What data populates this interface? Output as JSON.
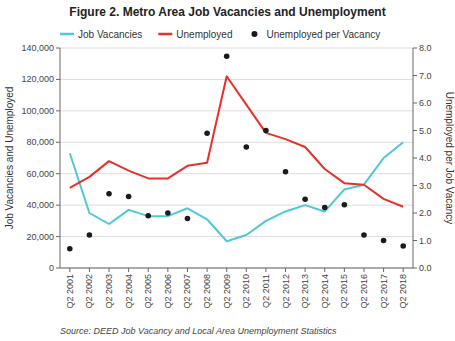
{
  "chart_data": {
    "type": "line",
    "title": "Figure 2. Metro Area Job Vacancies and Unemployment",
    "source": "Source: DEED Job Vacancy and Local Area Unemployment Statistics",
    "y_label": "Job Vacancies and Unemployed",
    "y2_label": "Unemployed per Job Vacancy",
    "categories": [
      "Q2 2001",
      "Q2 2002",
      "Q2 2003",
      "Q2 2004",
      "Q2 2005",
      "Q2 2006",
      "Q2 2007",
      "Q2 2008",
      "Q2 2009",
      "Q2 2010",
      "Q2 2011",
      "Q2 2012",
      "Q2 2013",
      "Q2 2014",
      "Q2 2015",
      "Q2 2016",
      "Q2 2017",
      "Q2 2018"
    ],
    "series": [
      {
        "name": "Job Vacancies",
        "color": "#4DC8D4",
        "values": [
          73000,
          35000,
          28000,
          37000,
          33000,
          33000,
          38000,
          31000,
          17000,
          21000,
          30000,
          36000,
          40000,
          36000,
          50000,
          53000,
          70000,
          80000
        ]
      },
      {
        "name": "Unemployed",
        "color": "#E8302A",
        "values": [
          51000,
          58000,
          68000,
          62000,
          57000,
          57000,
          65000,
          67000,
          122000,
          104000,
          86000,
          82000,
          77000,
          63000,
          54000,
          53000,
          44000,
          39000
        ]
      },
      {
        "name": "Unemployed per Vacancy",
        "color": "#1a1a1a",
        "type": "scatter",
        "marker": "circle",
        "axis": "y2",
        "values": [
          0.7,
          1.2,
          2.7,
          2.6,
          1.9,
          2.0,
          1.8,
          4.9,
          7.7,
          4.4,
          5.0,
          3.5,
          2.5,
          2.2,
          2.3,
          1.2,
          1.0,
          0.8
        ]
      }
    ],
    "ylim": [
      0,
      140000
    ],
    "yticks": [
      0,
      {
        "value": 20000,
        "label": "20,000"
      },
      {
        "value": 40000,
        "label": "40,000"
      },
      {
        "value": 60000,
        "label": "60,000"
      },
      {
        "value": 80000,
        "label": "80,000"
      },
      {
        "value": 100000,
        "label": "100,000"
      },
      {
        "value": 120000,
        "label": "120,000"
      },
      {
        "value": 140000,
        "label": "140,000"
      }
    ],
    "y2lim": [
      0.0,
      8.0
    ],
    "y2ticks": [
      {
        "value": 0.0,
        "label": "0.0"
      },
      {
        "value": 1.0,
        "label": "1.0"
      },
      {
        "value": 2.0,
        "label": "2.0"
      },
      {
        "value": 3.0,
        "label": "3.0"
      },
      {
        "value": 4.0,
        "label": "4.0"
      },
      {
        "value": 5.0,
        "label": "5.0"
      },
      {
        "value": 6.0,
        "label": "6.0"
      },
      {
        "value": 7.0,
        "label": "7.0"
      },
      {
        "value": 8.0,
        "label": "8.0"
      }
    ],
    "grid": true,
    "legend": "top"
  }
}
